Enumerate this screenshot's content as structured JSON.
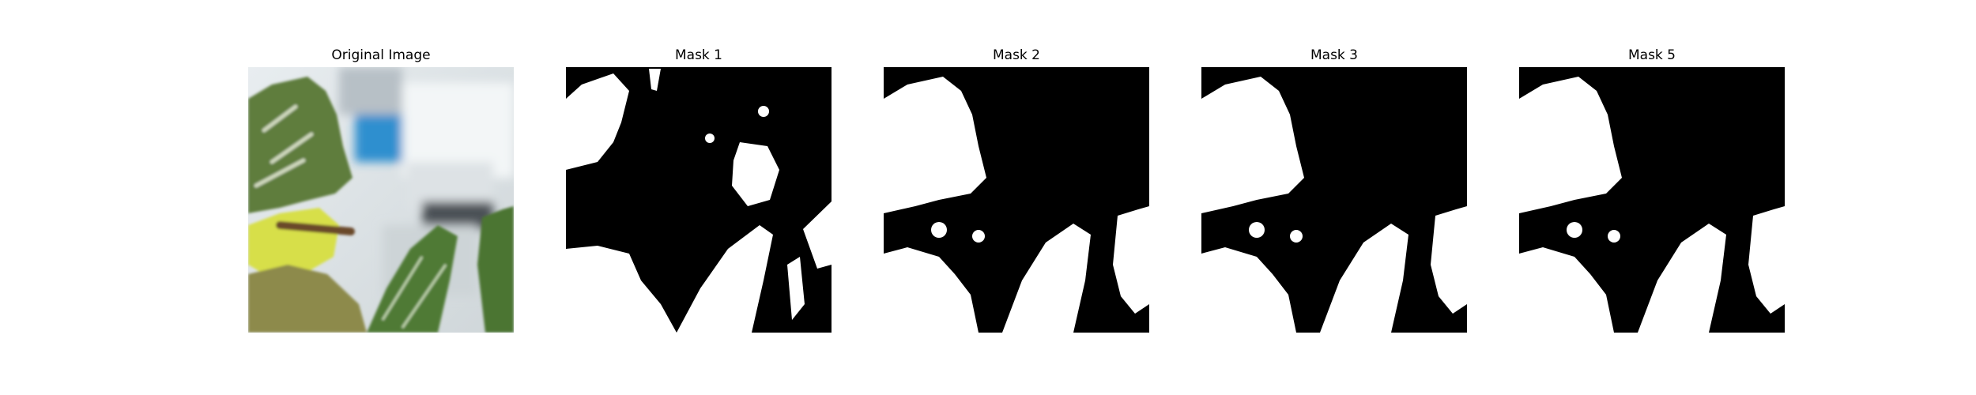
{
  "figure": {
    "panels": [
      {
        "title": "Original Image"
      },
      {
        "title": "Mask 1"
      },
      {
        "title": "Mask 2"
      },
      {
        "title": "Mask 3"
      },
      {
        "title": "Mask 5"
      }
    ]
  },
  "colors": {
    "background": "#ffffff",
    "mask_foreground": "#ffffff",
    "mask_background": "#000000",
    "leaf_green": "#5e7d3c",
    "leaf_yellow": "#d7df4a",
    "backdrop_blue": "#2f8fcf"
  }
}
